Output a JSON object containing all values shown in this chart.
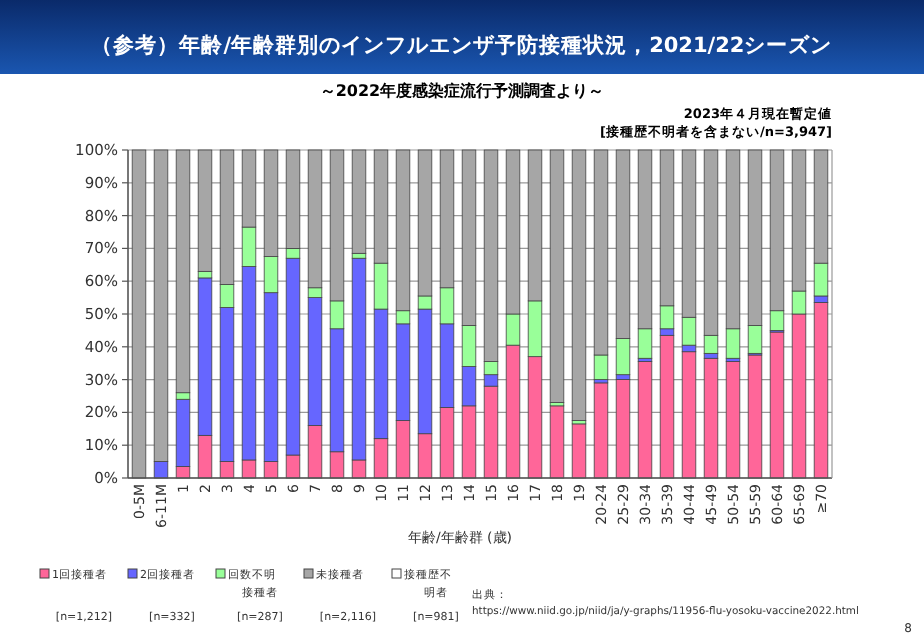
{
  "chart_data": {
    "type": "bar",
    "stacked": true,
    "title": "（参考）年齢/年齢群別のインフルエンザ予防接種状況，2021/22シーズン",
    "subtitle": "～2022年度感染症流行予測調査より～",
    "xlabel": "年齢/年齢群 (歳)",
    "categories": [
      "0-5M",
      "6-11M",
      "1",
      "2",
      "3",
      "4",
      "5",
      "6",
      "7",
      "8",
      "9",
      "10",
      "11",
      "12",
      "13",
      "14",
      "15",
      "16",
      "17",
      "18",
      "19",
      "20-24",
      "25-29",
      "30-34",
      "35-39",
      "40-44",
      "45-49",
      "50-54",
      "55-59",
      "60-64",
      "65-69",
      "≥70"
    ],
    "series": [
      {
        "name": "1回接種者",
        "color": "#ff6699",
        "values": [
          0,
          0,
          3.5,
          13,
          5,
          5.5,
          5,
          7,
          16,
          8,
          5.5,
          12,
          17.5,
          13.5,
          21.5,
          22,
          28,
          40.5,
          37,
          22,
          16.5,
          29,
          30,
          35.5,
          43.5,
          38.5,
          36.5,
          35.5,
          37.5,
          44.5,
          50,
          53.5
        ]
      },
      {
        "name": "2回接種者",
        "color": "#6666ff",
        "values": [
          0,
          5,
          20.5,
          48,
          47,
          59,
          51.5,
          60,
          39,
          37.5,
          61.5,
          39.5,
          29.5,
          38,
          25.5,
          12,
          3.5,
          0,
          0,
          0,
          0,
          1,
          1.5,
          1,
          2,
          2,
          1.5,
          1,
          0.5,
          0.5,
          0,
          2
        ]
      },
      {
        "name": "回数不明接種者",
        "color": "#99ff99",
        "values": [
          0,
          0,
          2,
          2,
          7,
          12,
          11,
          3,
          3,
          8.5,
          1.5,
          14,
          4,
          4,
          11,
          12.5,
          4,
          9.5,
          17,
          1,
          1,
          7.5,
          11,
          9,
          7,
          8.5,
          5.5,
          9,
          8.5,
          6,
          7,
          10
        ]
      },
      {
        "name": "未接種者",
        "color": "#a6a6a6",
        "values": [
          100,
          95,
          74,
          37,
          41,
          23.5,
          32.5,
          30,
          42,
          46,
          31.5,
          34.5,
          49,
          44.5,
          42,
          53.5,
          64.5,
          50,
          46,
          77,
          82.5,
          62.5,
          57.5,
          54.5,
          47.5,
          51,
          56.5,
          54.5,
          53.5,
          49,
          43,
          34.5
        ]
      },
      {
        "name": "接種歴不明者",
        "color": "#ffffff",
        "values": [
          null,
          null,
          null,
          null,
          null,
          null,
          null,
          null,
          null,
          null,
          null,
          null,
          null,
          null,
          null,
          null,
          null,
          null,
          null,
          null,
          null,
          null,
          null,
          null,
          null,
          null,
          null,
          null,
          null,
          null,
          null,
          null
        ]
      }
    ],
    "ylim": [
      0,
      100
    ],
    "yticks": [
      {
        "value": 0,
        "label": "0%"
      },
      {
        "value": 10,
        "label": "10%"
      },
      {
        "value": 20,
        "label": "20%"
      },
      {
        "value": 30,
        "label": "30%"
      },
      {
        "value": 40,
        "label": "40%"
      },
      {
        "value": 50,
        "label": "50%"
      },
      {
        "value": 60,
        "label": "60%"
      },
      {
        "value": 70,
        "label": "70%"
      },
      {
        "value": 80,
        "label": "80%"
      },
      {
        "value": 90,
        "label": "90%"
      },
      {
        "value": 100,
        "label": "100%"
      }
    ],
    "grid": "y",
    "legend": "bottom",
    "annotations": [
      "2023年４月現在暫定値",
      "[接種歴不明者を含まない/n=3,947]",
      "[n=1,212]",
      "[n=332]",
      "[n=287]",
      "[n=2,116]",
      "[n=981]",
      "出典：",
      "https://www.niid.go.jp/niid/ja/y-graphs/11956-flu-yosoku-vaccine2022.html",
      "8"
    ]
  }
}
